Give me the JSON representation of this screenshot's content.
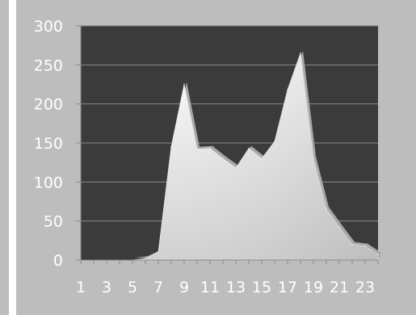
{
  "chart_data": {
    "type": "area",
    "x": [
      1,
      2,
      3,
      4,
      5,
      6,
      7,
      8,
      9,
      10,
      11,
      12,
      13,
      14,
      15,
      16,
      17,
      18,
      19,
      20,
      21,
      22,
      23,
      24
    ],
    "values": [
      0,
      0,
      0,
      0,
      0,
      2,
      10,
      145,
      225,
      142,
      143,
      130,
      118,
      143,
      130,
      152,
      218,
      265,
      130,
      65,
      42,
      20,
      18,
      7
    ],
    "x_tick_labels": [
      "1",
      "3",
      "5",
      "7",
      "9",
      "11",
      "13",
      "15",
      "17",
      "19",
      "21",
      "23"
    ],
    "y_tick_labels": [
      "0",
      "50",
      "100",
      "150",
      "200",
      "250",
      "300"
    ],
    "ylim": [
      0,
      300
    ],
    "xlim": [
      1,
      24
    ],
    "grid": true,
    "legend": "none",
    "colors": {
      "page_background": "#bdbdbd",
      "plot_background": "#3b3b3b",
      "gridline": "#8a8a8a",
      "area_fill_light": "#ffffff",
      "area_fill_dark": "#cfcfcf",
      "tick_text": "#ffffff",
      "left_bar": "#ffffff"
    }
  }
}
